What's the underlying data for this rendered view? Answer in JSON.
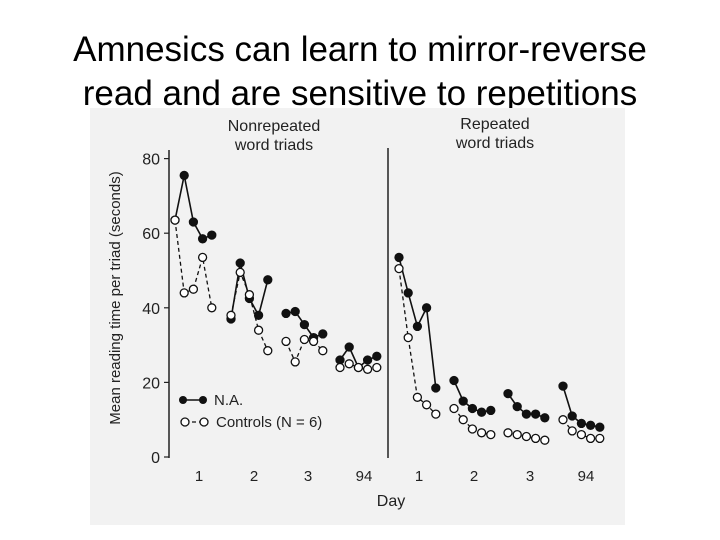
{
  "slide": {
    "title_line1": "Amnesics can learn to mirror-reverse",
    "title_line2": "read and are sensitive to repetitions"
  },
  "chart_data": {
    "type": "line",
    "ylabel": "Mean reading time per triad (seconds)",
    "xlabel": "Day",
    "ylim": [
      0,
      85
    ],
    "yticks": [
      0,
      20,
      40,
      60,
      80
    ],
    "panels": [
      {
        "title_line1": "Nonrepeated",
        "title_line2": "word triads",
        "day_labels": [
          "1",
          "2",
          "3",
          "94"
        ]
      },
      {
        "title_line1": "Repeated",
        "title_line2": "word triads",
        "day_labels": [
          "1",
          "2",
          "3",
          "94"
        ]
      }
    ],
    "legend": {
      "position": "bottom-left",
      "entries": [
        "N.A.",
        "Controls (N = 6)"
      ]
    },
    "series": [
      {
        "name": "N.A.",
        "marker": "filled",
        "groups": [
          [
            63.5,
            75.5,
            63,
            58.5,
            59.5
          ],
          [
            37,
            52,
            42.5,
            38,
            47.5
          ],
          [
            38.5,
            39,
            35.5,
            32,
            33
          ],
          [
            26,
            29.5,
            24,
            26,
            27
          ],
          [
            53.5,
            44,
            35,
            40,
            18.5
          ],
          [
            20.5,
            15,
            13,
            12,
            12.5
          ],
          [
            17,
            13.5,
            11.5,
            11.5,
            10.5
          ],
          [
            19,
            11,
            9,
            8.5,
            8
          ]
        ]
      },
      {
        "name": "Controls (N = 6)",
        "marker": "open",
        "groups": [
          [
            63.5,
            44,
            45,
            53.5,
            40
          ],
          [
            38,
            49.5,
            43.5,
            34,
            28.5
          ],
          [
            31,
            25.5,
            31.5,
            31,
            28.5
          ],
          [
            24,
            25,
            24,
            23.5,
            24
          ],
          [
            50.5,
            32,
            16,
            14,
            11.5
          ],
          [
            13,
            10,
            7.5,
            6.5,
            6
          ],
          [
            6.5,
            6,
            5.5,
            5,
            4.5
          ],
          [
            10,
            7,
            6,
            5,
            5
          ]
        ]
      }
    ]
  }
}
